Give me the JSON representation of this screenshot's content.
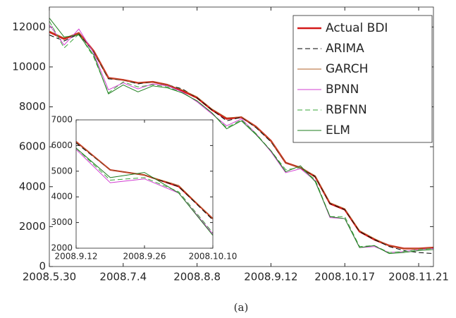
{
  "chart_data": [
    {
      "type": "line",
      "x": [
        0,
        1,
        2,
        3,
        4,
        5,
        6,
        7,
        8,
        9,
        10,
        11,
        12,
        13,
        14,
        15,
        16,
        17,
        18,
        19,
        20,
        21,
        22,
        23,
        24,
        25,
        26
      ],
      "xlim": [
        0,
        26
      ],
      "xticks": [
        {
          "value": 0,
          "label": "2008.5.30"
        },
        {
          "value": 5,
          "label": "2008.7.4"
        },
        {
          "value": 10,
          "label": "2008.8.8"
        },
        {
          "value": 15,
          "label": "2008.9.12"
        },
        {
          "value": 20,
          "label": "2008.10.17"
        },
        {
          "value": 25,
          "label": "2008.11.21"
        }
      ],
      "ylim": [
        0,
        13000
      ],
      "yticks": [
        0,
        2000,
        4000,
        6000,
        8000,
        10000,
        12000
      ],
      "legend": "upper right",
      "series": [
        {
          "name": "Actual BDI",
          "color": "#d41a1a",
          "values": [
            11750,
            11400,
            11700,
            10800,
            9450,
            9350,
            9200,
            9250,
            9100,
            8800,
            8450,
            7850,
            7400,
            7480,
            7000,
            6300,
            5200,
            4950,
            4500,
            3150,
            2850,
            1750,
            1350,
            1050,
            900,
            900,
            950
          ]
        },
        {
          "name": "ARIMA",
          "color": "#000000",
          "dashed": true,
          "values": [
            11600,
            11300,
            11650,
            10750,
            9400,
            9350,
            9150,
            9250,
            9100,
            8900,
            8450,
            7850,
            7300,
            7480,
            6950,
            6250,
            5200,
            4950,
            4500,
            3150,
            2850,
            1750,
            1350,
            1000,
            800,
            700,
            650
          ]
        },
        {
          "name": "GARCH",
          "color": "#b0602a",
          "values": [
            11800,
            11450,
            11700,
            10800,
            9450,
            9350,
            9200,
            9250,
            9100,
            8850,
            8500,
            7900,
            7450,
            7500,
            7000,
            6300,
            5200,
            4950,
            4550,
            3200,
            2900,
            1800,
            1400,
            1050,
            900,
            900,
            950
          ]
        },
        {
          "name": "BPNN",
          "color": "#d23fd2",
          "values": [
            12100,
            11100,
            11900,
            10700,
            8850,
            9200,
            8900,
            9150,
            9050,
            8750,
            8250,
            7650,
            7050,
            7400,
            6650,
            5750,
            4700,
            4900,
            4300,
            2450,
            2400,
            950,
            1000,
            700,
            750,
            850,
            900
          ]
        },
        {
          "name": "RBFNN",
          "color": "#3aa53a",
          "dashed": true,
          "values": [
            12300,
            10950,
            11650,
            10500,
            8700,
            9250,
            9000,
            9100,
            9000,
            8700,
            8300,
            7700,
            6950,
            7350,
            6650,
            5800,
            4850,
            4950,
            4350,
            2500,
            2500,
            1000,
            1050,
            700,
            750,
            850,
            900
          ]
        },
        {
          "name": "ELM",
          "color": "#1e7e1e",
          "values": [
            12450,
            11500,
            11600,
            10600,
            8650,
            9100,
            8750,
            9050,
            8950,
            8700,
            8300,
            7700,
            6900,
            7300,
            6600,
            5800,
            4750,
            5050,
            4250,
            2500,
            2400,
            950,
            1050,
            650,
            700,
            800,
            850
          ]
        }
      ]
    },
    {
      "type": "line",
      "x": [
        0,
        1,
        2,
        3,
        4
      ],
      "xlim": [
        0,
        4
      ],
      "xticks": [
        {
          "value": 0,
          "label": "2008.9.12"
        },
        {
          "value": 2,
          "label": "2008.9.26"
        },
        {
          "value": 4,
          "label": "2008.10.10"
        }
      ],
      "ylim": [
        2000,
        7000
      ],
      "yticks": [
        2000,
        3000,
        4000,
        5000,
        6000,
        7000
      ],
      "series": [
        {
          "color": "#d41a1a",
          "values": [
            6150,
            5050,
            4850,
            4400,
            3150
          ]
        },
        {
          "color": "#000000",
          "dashed": true,
          "values": [
            6100,
            5050,
            4850,
            4400,
            3100
          ]
        },
        {
          "color": "#b0602a",
          "values": [
            6150,
            5050,
            4850,
            4450,
            3150
          ]
        },
        {
          "color": "#d23fd2",
          "values": [
            5850,
            4550,
            4700,
            4150,
            2550
          ]
        },
        {
          "color": "#3aa53a",
          "dashed": true,
          "values": [
            5900,
            4650,
            4750,
            4200,
            2600
          ]
        },
        {
          "color": "#1e7e1e",
          "values": [
            5900,
            4750,
            4950,
            4150,
            2500
          ]
        }
      ]
    }
  ],
  "caption": "(a)"
}
